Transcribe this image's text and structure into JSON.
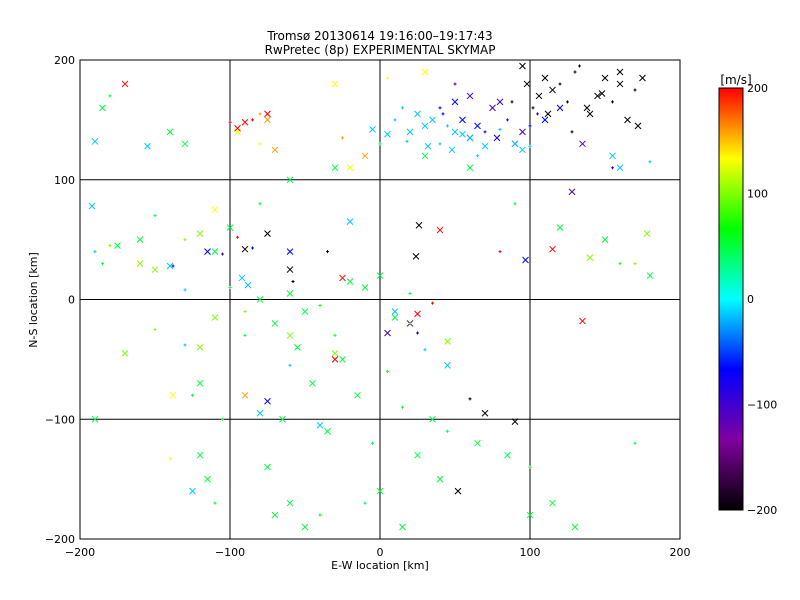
{
  "chart_data": {
    "type": "scatter",
    "title": "Tromsø 20130614 19:16:00–19:17:43",
    "subtitle": "RwPretec (8p) EXPERIMENTAL SKYMAP",
    "xlabel": "E-W location [km]",
    "ylabel": "N-S location [km]",
    "xlim": [
      -200,
      200
    ],
    "ylim": [
      -200,
      200
    ],
    "xticks": [
      "−200",
      "−100",
      "0",
      "100",
      "200"
    ],
    "yticks": [
      "−200",
      "−100",
      "0",
      "100",
      "200"
    ],
    "grid": true,
    "colorbar": {
      "unit": "[m/s]",
      "range": [
        -200,
        200
      ],
      "ticks": [
        "200",
        "100",
        "0",
        "−100",
        "−200"
      ],
      "colormap": [
        "#000000",
        "#8000a0",
        "#0000ff",
        "#00ffff",
        "#00ff00",
        "#ffff00",
        "#ff0000"
      ]
    },
    "markers": {
      "small": "plus",
      "large": "cross"
    },
    "series": [
      {
        "velocity": -200,
        "color": "#000000",
        "x": [
          130,
          150,
          160,
          170,
          145,
          138,
          155,
          165,
          172,
          128,
          112,
          106,
          102,
          98,
          95,
          88,
          115,
          140,
          120,
          160,
          175,
          133,
          148,
          110,
          125,
          -90,
          -60,
          60,
          70,
          26,
          -35,
          90,
          52,
          -58,
          24,
          -75
        ],
        "y": [
          190,
          185,
          180,
          175,
          170,
          160,
          165,
          150,
          145,
          140,
          155,
          170,
          160,
          180,
          195,
          165,
          175,
          155,
          180,
          190,
          185,
          195,
          172,
          185,
          165,
          42,
          25,
          -83,
          -95,
          62,
          40,
          -102,
          -160,
          15,
          36,
          55
        ]
      },
      {
        "velocity": -120,
        "color": "#4000c0",
        "x": [
          50,
          60,
          75,
          85,
          95,
          80,
          105,
          128,
          135,
          155,
          20,
          5,
          -105
        ],
        "y": [
          180,
          170,
          160,
          150,
          140,
          165,
          155,
          90,
          130,
          110,
          -20,
          -28,
          38
        ]
      },
      {
        "velocity": -80,
        "color": "#0000ff",
        "x": [
          40,
          55,
          65,
          70,
          78,
          90,
          100,
          60,
          50,
          42,
          110,
          120,
          -85,
          -60,
          -75,
          -138,
          -115,
          97,
          25
        ],
        "y": [
          160,
          150,
          145,
          140,
          135,
          130,
          145,
          135,
          165,
          155,
          150,
          160,
          43,
          40,
          -85,
          28,
          40,
          33,
          -28
        ]
      },
      {
        "velocity": -40,
        "color": "#00c8ff",
        "x": [
          10,
          20,
          30,
          40,
          50,
          60,
          15,
          25,
          35,
          45,
          55,
          70,
          80,
          -5,
          5,
          18,
          32,
          48,
          65,
          90,
          95,
          100,
          155,
          160,
          180,
          -190,
          -192,
          -190,
          -155,
          -140,
          -130,
          -92,
          -88,
          -60,
          -80,
          -40,
          -130,
          -20,
          10,
          30,
          45,
          -125
        ],
        "y": [
          150,
          140,
          145,
          130,
          140,
          135,
          160,
          155,
          150,
          145,
          138,
          128,
          142,
          142,
          138,
          132,
          128,
          125,
          120,
          130,
          125,
          128,
          120,
          110,
          115,
          132,
          78,
          40,
          128,
          28,
          8,
          18,
          12,
          -55,
          -95,
          -105,
          -38,
          65,
          -10,
          -42,
          -55,
          -160
        ]
      },
      {
        "velocity": 0,
        "color": "#00ff40",
        "x": [
          -100,
          -80,
          -60,
          -40,
          -20,
          0,
          20,
          -70,
          -50,
          -30,
          -10,
          10,
          -90,
          -55,
          -25,
          5,
          -45,
          -15,
          15,
          -65,
          -35,
          -5,
          25,
          -120,
          -105,
          -75,
          35,
          45,
          65,
          85,
          -185,
          -175,
          -160,
          -150,
          -110,
          -100,
          -80,
          -60,
          -30,
          0,
          30,
          60,
          90,
          120,
          150,
          160,
          180,
          -190,
          -125,
          -120,
          -115,
          -110,
          -60,
          -50,
          -40,
          0,
          40,
          100,
          115,
          130,
          170,
          100,
          -185,
          -180,
          -140,
          -130,
          -10,
          15,
          -70
        ],
        "y": [
          10,
          0,
          5,
          -5,
          15,
          20,
          5,
          -20,
          -10,
          -30,
          10,
          -15,
          -30,
          -40,
          -50,
          -60,
          -70,
          -80,
          -90,
          -100,
          -110,
          -120,
          -130,
          -70,
          -100,
          -140,
          -100,
          -110,
          -120,
          -130,
          30,
          45,
          50,
          70,
          40,
          60,
          80,
          100,
          110,
          130,
          120,
          110,
          80,
          60,
          50,
          30,
          20,
          -100,
          -80,
          -130,
          -150,
          -170,
          -170,
          -190,
          -180,
          -160,
          -150,
          -140,
          -170,
          -190,
          -120,
          -180,
          160,
          170,
          140,
          130,
          -170,
          -190,
          -180
        ]
      },
      {
        "velocity": 40,
        "color": "#80ff00",
        "x": [
          -180,
          -160,
          -150,
          -130,
          -120,
          140,
          170,
          178,
          -170,
          -150,
          -120,
          -110,
          -90,
          -60,
          -30,
          20,
          45
        ],
        "y": [
          45,
          30,
          25,
          50,
          55,
          35,
          30,
          55,
          -45,
          -25,
          -40,
          -15,
          -10,
          -30,
          -45,
          -20,
          -35
        ]
      },
      {
        "velocity": 100,
        "color": "#ffff00",
        "x": [
          -140,
          -138,
          -95,
          -80,
          -30,
          -20,
          5,
          30,
          -110
        ],
        "y": [
          -133,
          -80,
          140,
          130,
          180,
          110,
          185,
          190,
          75
        ]
      },
      {
        "velocity": 150,
        "color": "#ffa000",
        "x": [
          -80,
          -75,
          -70,
          -25,
          -10,
          -90
        ],
        "y": [
          155,
          150,
          125,
          135,
          120,
          -80
        ]
      },
      {
        "velocity": 200,
        "color": "#ff0000",
        "x": [
          -100,
          -95,
          -90,
          -85,
          -75,
          -170,
          -95,
          115,
          135,
          35,
          -25,
          -30,
          80,
          40,
          25
        ],
        "y": [
          148,
          143,
          148,
          150,
          155,
          180,
          52,
          42,
          -18,
          -3,
          18,
          -50,
          40,
          58,
          -12
        ]
      }
    ]
  }
}
